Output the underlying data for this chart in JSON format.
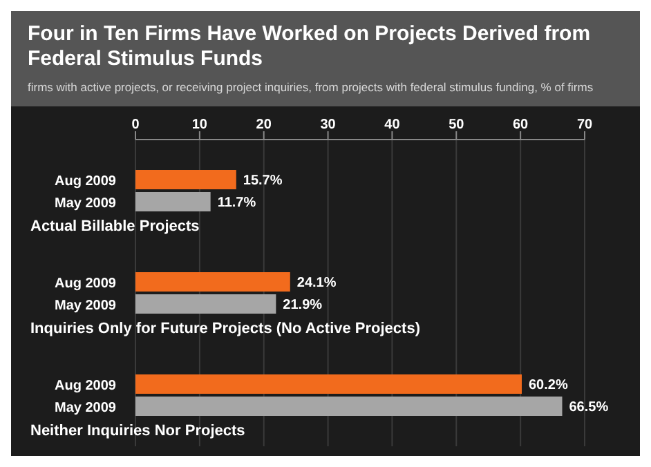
{
  "chart_data": {
    "type": "bar",
    "orientation": "horizontal",
    "title": "Four in Ten Firms Have Worked on Projects Derived from Federal Stimulus Funds",
    "subtitle": "firms with active projects, or receiving project inquiries, from projects with federal stimulus funding, % of firms",
    "categories": [
      "Actual Billable Projects",
      "Inquiries Only for Future Projects (No Active Projects)",
      "Neither Inquiries Nor Projects"
    ],
    "series": [
      {
        "name": "Aug 2009",
        "color": "#f26b1d",
        "values": [
          15.7,
          24.1,
          60.2
        ],
        "value_labels": [
          "15.7%",
          "24.1%",
          "60.2%"
        ]
      },
      {
        "name": "May 2009",
        "color": "#a6a6a6",
        "values": [
          11.7,
          21.9,
          66.5
        ],
        "value_labels": [
          "11.7%",
          "21.9%",
          "66.5%"
        ]
      }
    ],
    "xlim": [
      0,
      70
    ],
    "xticks": [
      0,
      10,
      20,
      30,
      40,
      50,
      60,
      70
    ],
    "grid": "x"
  }
}
